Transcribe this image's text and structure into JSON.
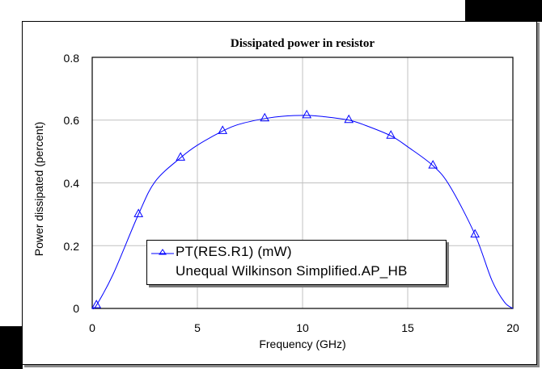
{
  "chart_data": {
    "type": "line",
    "title": "Dissipated power in resistor",
    "xlabel": "Frequency (GHz)",
    "ylabel": "Power dissipated (percent)",
    "xlim": [
      0,
      20
    ],
    "ylim": [
      0,
      0.8
    ],
    "x_ticks": [
      "0",
      "5",
      "10",
      "15",
      "20"
    ],
    "y_ticks": [
      "0",
      "0.2",
      "0.4",
      "0.6",
      "0.8"
    ],
    "grid": true,
    "legend_position": "lower center (inside plot)",
    "series": [
      {
        "name": "PT(RES.R1) (mW)",
        "source": "Unequal Wilkinson Simplified.AP_HB",
        "color": "#0000ff",
        "marker": "triangle",
        "x": [
          0.2,
          2.2,
          4.2,
          6.2,
          8.2,
          10.2,
          12.2,
          14.2,
          16.2,
          18.2
        ],
        "y": [
          0.01,
          0.3,
          0.48,
          0.565,
          0.605,
          0.615,
          0.6,
          0.55,
          0.455,
          0.235
        ],
        "curve_x": [
          0,
          0.2,
          1,
          2.2,
          3,
          4.2,
          5,
          6.2,
          7,
          8.2,
          9,
          10.2,
          11,
          12.2,
          13,
          14.2,
          15,
          16.2,
          17,
          18.2,
          19,
          19.6,
          20
        ],
        "curve_y": [
          0,
          0.01,
          0.11,
          0.3,
          0.405,
          0.48,
          0.52,
          0.565,
          0.587,
          0.605,
          0.612,
          0.615,
          0.611,
          0.6,
          0.583,
          0.55,
          0.515,
          0.455,
          0.39,
          0.235,
          0.09,
          0.02,
          0
        ]
      }
    ]
  },
  "legend": {
    "line1": "PT(RES.R1) (mW)",
    "line2": "Unequal Wilkinson Simplified.AP_HB"
  },
  "colors": {
    "series": "#0000ff",
    "grid": "#c0c0c0",
    "axes": "#000000"
  }
}
